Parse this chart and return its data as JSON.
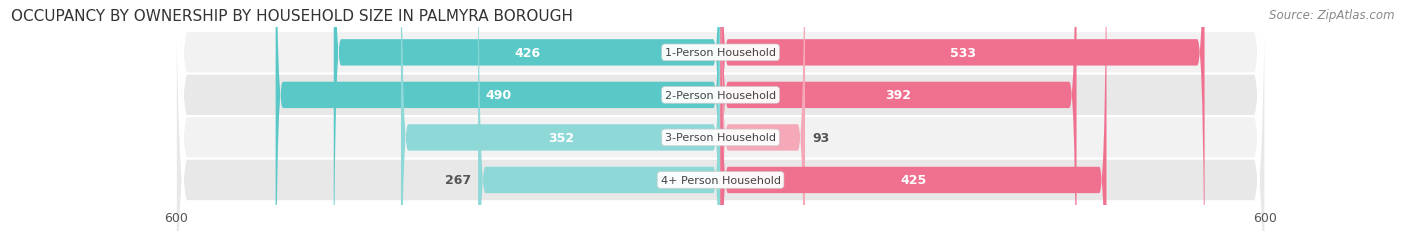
{
  "title": "OCCUPANCY BY OWNERSHIP BY HOUSEHOLD SIZE IN PALMYRA BOROUGH",
  "source": "Source: ZipAtlas.com",
  "categories": [
    "1-Person Household",
    "2-Person Household",
    "3-Person Household",
    "4+ Person Household"
  ],
  "owner_values": [
    426,
    490,
    352,
    267
  ],
  "renter_values": [
    533,
    392,
    93,
    425
  ],
  "owner_color_dark": "#5BC8C8",
  "owner_color_light": "#8FD8D8",
  "renter_color_dark": "#F07090",
  "renter_color_light": "#F4A8B8",
  "axis_max": 600,
  "title_fontsize": 11,
  "source_fontsize": 8.5,
  "tick_fontsize": 9,
  "bar_label_fontsize": 9,
  "category_fontsize": 8,
  "legend_fontsize": 9,
  "bar_height": 0.62,
  "background_color": "#ffffff",
  "row_bg_odd": "#f2f2f2",
  "row_bg_even": "#e8e8e8",
  "owner_threshold": 300,
  "renter_threshold": 150
}
